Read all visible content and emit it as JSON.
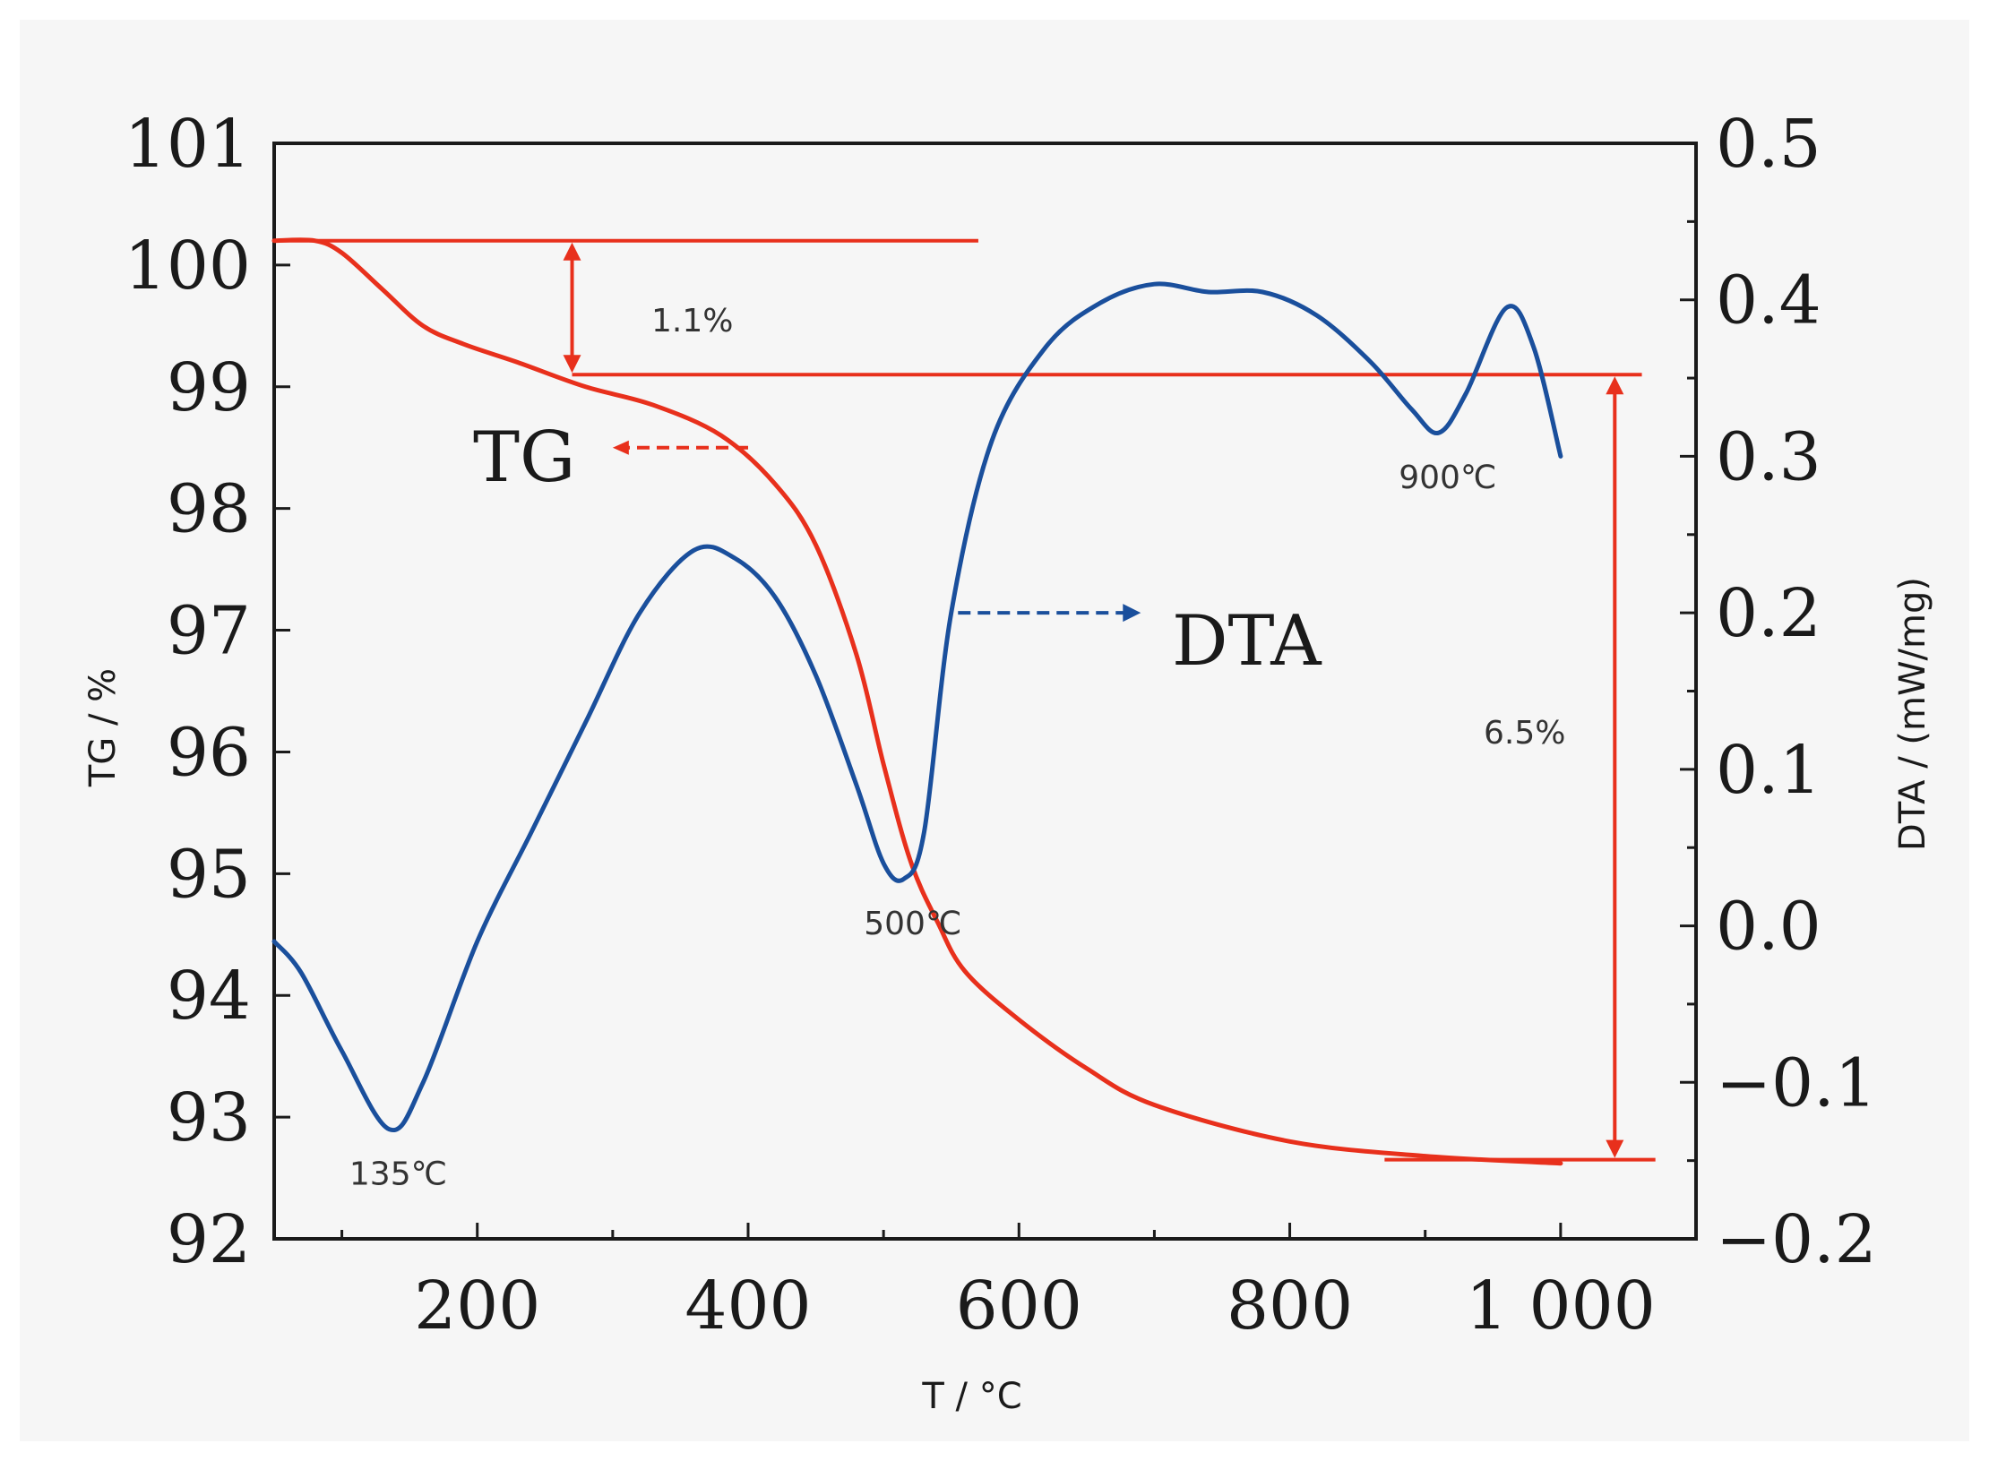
{
  "colors": {
    "tg": "#e8301c",
    "dta": "#1a4f9c",
    "axis": "#1a1a1a",
    "background": "#f6f6f6"
  },
  "chart_data": {
    "type": "line",
    "title": "",
    "xlabel": "T / °C",
    "ylabel_left": "TG / %",
    "ylabel_right": "DTA / (mW/mg)",
    "xlim": [
      50,
      1100
    ],
    "ylim_left": [
      92,
      101
    ],
    "ylim_right": [
      -0.2,
      0.5
    ],
    "x_tick_values": [
      200,
      400,
      600,
      800,
      1000
    ],
    "x_tick_labels": [
      "200",
      "400",
      "600",
      "800",
      "1 000"
    ],
    "y_left_tick_values": [
      92,
      93,
      94,
      95,
      96,
      97,
      98,
      99,
      100,
      101
    ],
    "y_left_tick_labels": [
      "92",
      "93",
      "94",
      "95",
      "96",
      "97",
      "98",
      "99",
      "100",
      "101"
    ],
    "y_right_tick_values": [
      -0.2,
      -0.1,
      0.0,
      0.1,
      0.2,
      0.3,
      0.4,
      0.5
    ],
    "y_right_tick_labels": [
      "−0.2",
      "−0.1",
      "0.0",
      "0.1",
      "0.2",
      "0.3",
      "0.4",
      "0.5"
    ],
    "series": [
      {
        "name": "TG",
        "axis": "left",
        "x": [
          50,
          80,
          100,
          130,
          160,
          190,
          230,
          280,
          330,
          380,
          420,
          450,
          480,
          500,
          520,
          540,
          560,
          600,
          650,
          700,
          800,
          900,
          1000
        ],
        "y": [
          100.2,
          100.2,
          100.1,
          99.8,
          99.5,
          99.35,
          99.2,
          99.0,
          98.85,
          98.6,
          98.2,
          97.7,
          96.8,
          95.9,
          95.1,
          94.6,
          94.2,
          93.8,
          93.4,
          93.1,
          92.8,
          92.68,
          92.62
        ]
      },
      {
        "name": "DTA",
        "axis": "right",
        "x": [
          50,
          70,
          100,
          135,
          160,
          200,
          240,
          280,
          320,
          360,
          390,
          420,
          450,
          480,
          500,
          515,
          530,
          550,
          580,
          620,
          660,
          700,
          740,
          780,
          820,
          860,
          890,
          910,
          930,
          960,
          980,
          1000
        ],
        "y": [
          -0.01,
          -0.03,
          -0.08,
          -0.13,
          -0.1,
          -0.01,
          0.06,
          0.13,
          0.2,
          0.24,
          0.235,
          0.21,
          0.16,
          0.09,
          0.04,
          0.03,
          0.06,
          0.2,
          0.31,
          0.37,
          0.398,
          0.41,
          0.405,
          0.405,
          0.39,
          0.36,
          0.33,
          0.315,
          0.34,
          0.395,
          0.37,
          0.3
        ]
      }
    ],
    "annotations": {
      "tg_step1_label": "1.1%",
      "tg_step2_label": "6.5%",
      "peak_135": "135℃",
      "peak_500": "500℃",
      "peak_900": "900℃",
      "tg_label": "TG",
      "dta_label": "DTA"
    },
    "reference_lines": {
      "tg_upper_level": 100.2,
      "tg_mid_level": 99.1,
      "tg_final_level": 92.65,
      "tg_upper_x_range": [
        50,
        570
      ],
      "tg_mid_x_range": [
        270,
        1060
      ],
      "tg_final_x_range": [
        870,
        1070
      ],
      "step1_arrow_x": 270,
      "step2_arrow_x": 1040
    },
    "annotation_values": {
      "peak_135_x": 135,
      "peak_500_x": 515,
      "peak_900_x": 910,
      "tg_pointer_from_x": 400,
      "tg_pointer_to_x": 300,
      "tg_pointer_y": 98.5,
      "dta_pointer_from_x": 555,
      "dta_pointer_to_x": 690,
      "dta_pointer_y": 0.2
    },
    "grid": false,
    "legend": "none"
  }
}
